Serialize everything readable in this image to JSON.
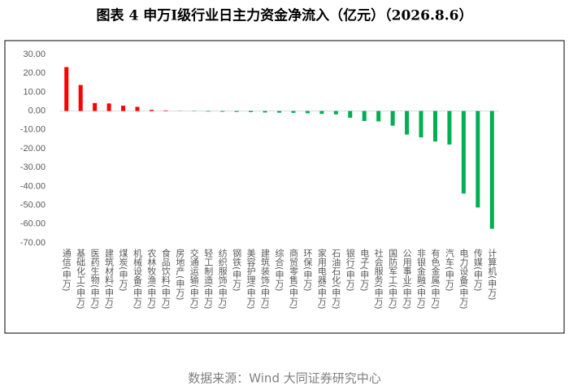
{
  "chart_data": {
    "type": "bar",
    "title": "图表 4  申万I级行业日主力资金净流入（亿元）（2026.8.6）",
    "source": "数据来源：Wind 大同证券研究中心",
    "categories": [
      "通信(申万)",
      "基础化工(申万)",
      "医药生物(申万)",
      "建筑材料(申万)",
      "煤炭(申万)",
      "机械设备(申万)",
      "农林牧渔(申万)",
      "食品饮料(申万)",
      "房地产(申万)",
      "交通运输(申万)",
      "轻工制造(申万)",
      "纺织服饰(申万)",
      "钢铁(申万)",
      "美容护理(申万)",
      "建筑装饰(申万)",
      "综合(申万)",
      "商贸零售(申万)",
      "环保(申万)",
      "家用电器(申万)",
      "石油石化(申万)",
      "银行(申万)",
      "电子(申万)",
      "社会服务(申万)",
      "国防军工(申万)",
      "公用事业(申万)",
      "非银金融(申万)",
      "有色金属(申万)",
      "汽车(申万)",
      "电力设备(申万)",
      "传媒(申万)",
      "计算机(申万)"
    ],
    "values": [
      23.3,
      13.8,
      4.2,
      4.0,
      2.8,
      2.2,
      0.6,
      0.3,
      -0.1,
      -0.2,
      -0.3,
      -0.4,
      -0.5,
      -0.6,
      -0.8,
      -0.9,
      -1.0,
      -1.2,
      -1.5,
      -1.8,
      -3.6,
      -5.3,
      -5.5,
      -7.8,
      -12.5,
      -14.0,
      -16.2,
      -17.8,
      -43.8,
      -51.2,
      -62.5
    ],
    "color_positive": "#ff0000",
    "color_negative": "#00b050",
    "ylim": [
      -70,
      30
    ],
    "yticks": [
      {
        "value": 30,
        "label": "30.00"
      },
      {
        "value": 20,
        "label": "20.00"
      },
      {
        "value": 10,
        "label": "10.00"
      },
      {
        "value": 0,
        "label": "0.00"
      },
      {
        "value": -10,
        "label": "-10.00"
      },
      {
        "value": -20,
        "label": "-20.00"
      },
      {
        "value": -30,
        "label": "-30.00"
      },
      {
        "value": -40,
        "label": "-40.00"
      },
      {
        "value": -50,
        "label": "-50.00"
      },
      {
        "value": -60,
        "label": "-60.00"
      },
      {
        "value": -70,
        "label": "-70.00"
      }
    ],
    "grid": false
  }
}
